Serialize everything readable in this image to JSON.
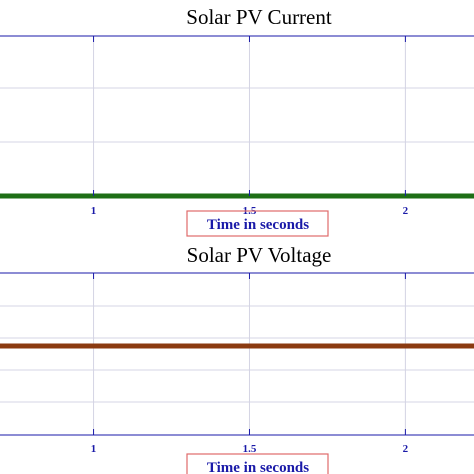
{
  "chart_data": [
    {
      "type": "line",
      "title": "Solar PV Current",
      "xlabel": "Time in seconds",
      "x_ticks": [
        "1",
        "1.5",
        "2"
      ],
      "xlim": [
        0.7,
        2.22
      ],
      "series": [
        {
          "x": [
            0.7,
            2.22
          ],
          "values": [
            0,
            0
          ],
          "color": "#1e6e16"
        }
      ],
      "grid": true,
      "axis_color": "#1a1aa8",
      "xlabel_box_color": "#e06a6a"
    },
    {
      "type": "line",
      "title": "Solar PV Voltage",
      "xlabel": "Time in seconds",
      "x_ticks": [
        "1",
        "1.5",
        "2"
      ],
      "xlim": [
        0.7,
        2.22
      ],
      "series": [
        {
          "x": [
            0.7,
            2.22
          ],
          "values": [
            0,
            0
          ],
          "color": "#8b3a10"
        }
      ],
      "grid": true,
      "axis_color": "#1a1aa8",
      "xlabel_box_color": "#e06a6a"
    }
  ]
}
